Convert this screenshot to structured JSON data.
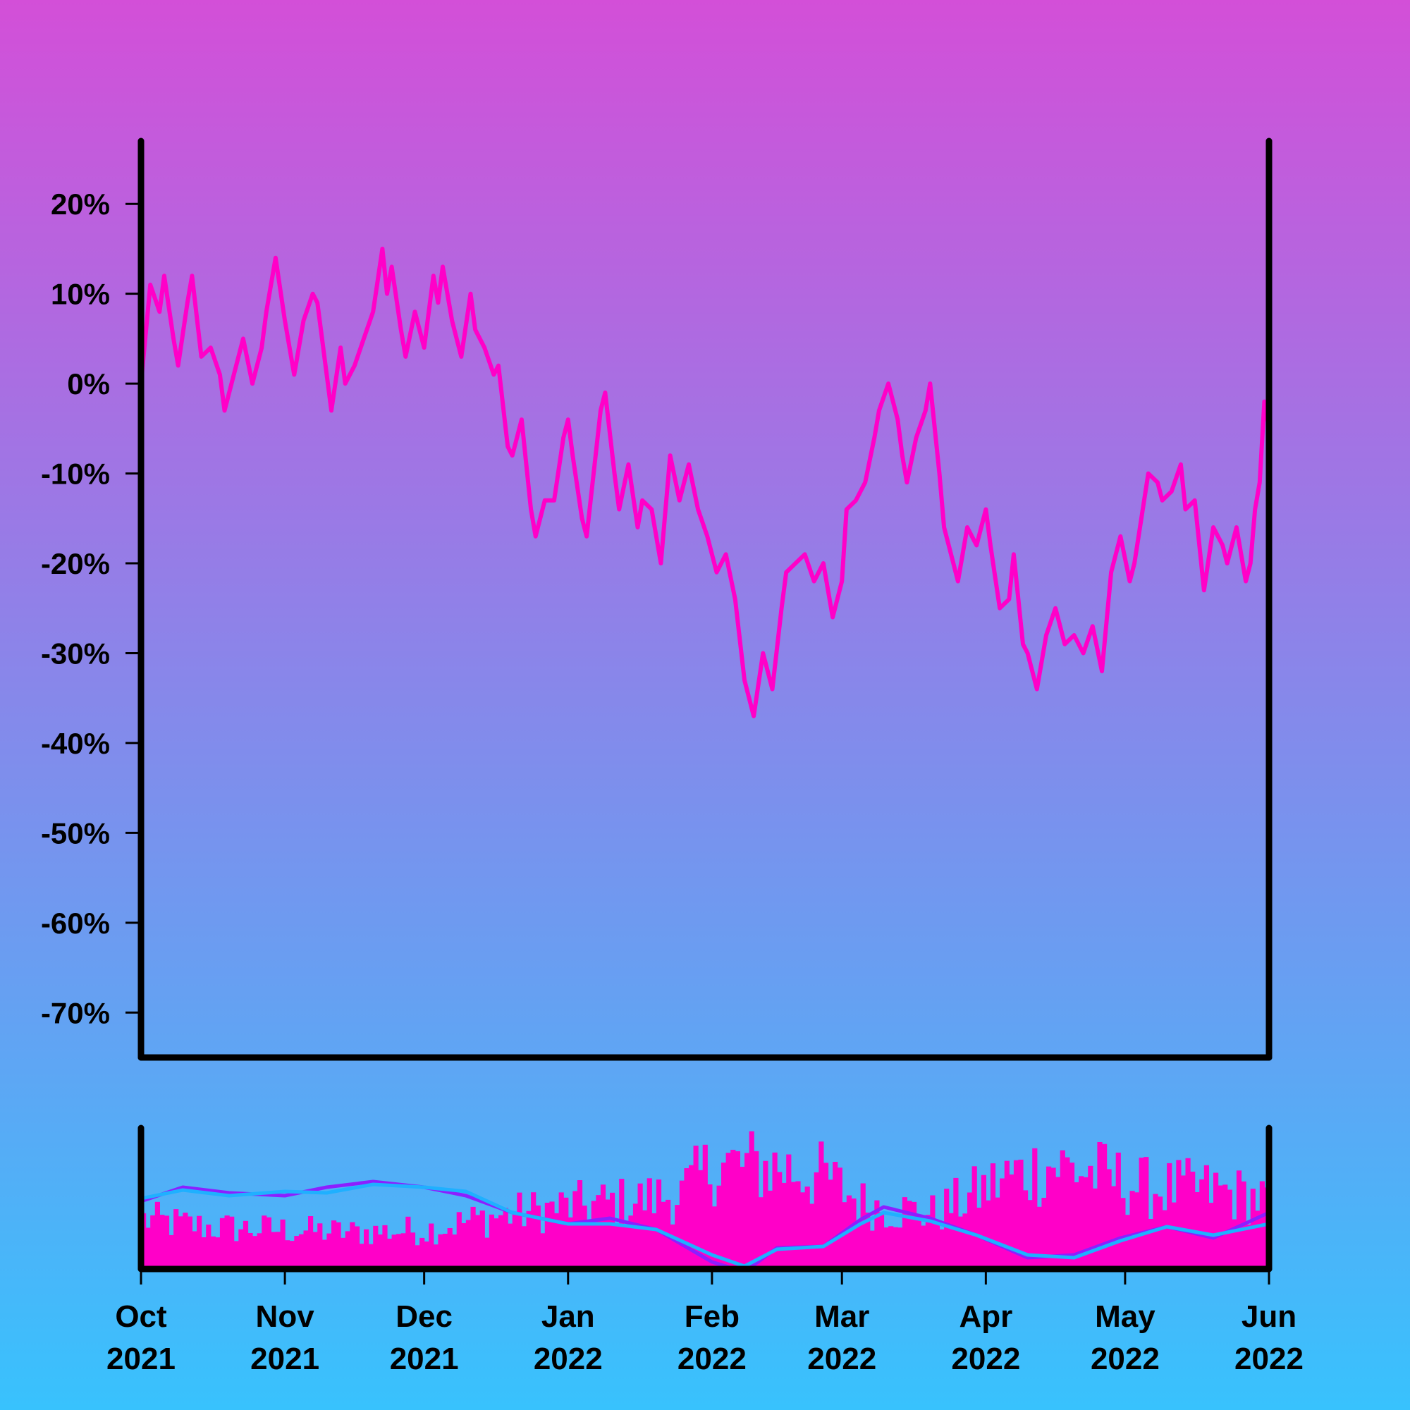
{
  "colors": {
    "bg_top": "#d34fd8",
    "bg_bottom": "#38c2fd",
    "axis": "#000000",
    "price_line": "#ff00c8",
    "volume_bars": "#ff00c8",
    "ma_short": "#8c1fff",
    "ma_long": "#1fb0ff"
  },
  "chart_data": [
    {
      "type": "line",
      "panel": "price",
      "title": "",
      "xlabel": "",
      "ylabel": "",
      "ylim": [
        -75,
        27
      ],
      "yticks": [
        20,
        10,
        0,
        -10,
        -20,
        -30,
        -40,
        -50,
        -60,
        -70
      ],
      "ytick_labels": [
        "20%",
        "10%",
        "0%",
        "-10%",
        "-20%",
        "-30%",
        "-40%",
        "-50%",
        "-60%",
        "-70%"
      ],
      "xlim": [
        "2021-10-01",
        "2022-06-01"
      ],
      "series": [
        {
          "values": [
            [
              "2021-10-01",
              0
            ],
            [
              "2021-10-03",
              11
            ],
            [
              "2021-10-05",
              8
            ],
            [
              "2021-10-06",
              12
            ],
            [
              "2021-10-08",
              5
            ],
            [
              "2021-10-09",
              2
            ],
            [
              "2021-10-11",
              9
            ],
            [
              "2021-10-12",
              12
            ],
            [
              "2021-10-14",
              3
            ],
            [
              "2021-10-16",
              4
            ],
            [
              "2021-10-18",
              1
            ],
            [
              "2021-10-19",
              -3
            ],
            [
              "2021-10-21",
              1
            ],
            [
              "2021-10-23",
              5
            ],
            [
              "2021-10-25",
              0
            ],
            [
              "2021-10-27",
              4
            ],
            [
              "2021-10-28",
              8
            ],
            [
              "2021-10-30",
              14
            ],
            [
              "2021-11-01",
              7
            ],
            [
              "2021-11-03",
              1
            ],
            [
              "2021-11-05",
              7
            ],
            [
              "2021-11-07",
              10
            ],
            [
              "2021-11-08",
              9
            ],
            [
              "2021-11-10",
              1
            ],
            [
              "2021-11-11",
              -3
            ],
            [
              "2021-11-13",
              4
            ],
            [
              "2021-11-14",
              0
            ],
            [
              "2021-11-16",
              2
            ],
            [
              "2021-11-18",
              5
            ],
            [
              "2021-11-20",
              8
            ],
            [
              "2021-11-22",
              15
            ],
            [
              "2021-11-23",
              10
            ],
            [
              "2021-11-24",
              13
            ],
            [
              "2021-11-26",
              6
            ],
            [
              "2021-11-27",
              3
            ],
            [
              "2021-11-29",
              8
            ],
            [
              "2021-12-01",
              4
            ],
            [
              "2021-12-03",
              12
            ],
            [
              "2021-12-04",
              9
            ],
            [
              "2021-12-05",
              13
            ],
            [
              "2021-12-07",
              7
            ],
            [
              "2021-12-08",
              5
            ],
            [
              "2021-12-09",
              3
            ],
            [
              "2021-12-11",
              10
            ],
            [
              "2021-12-12",
              6
            ],
            [
              "2021-12-14",
              4
            ],
            [
              "2021-12-16",
              1
            ],
            [
              "2021-12-17",
              2
            ],
            [
              "2021-12-19",
              -7
            ],
            [
              "2021-12-20",
              -8
            ],
            [
              "2021-12-22",
              -4
            ],
            [
              "2021-12-24",
              -14
            ],
            [
              "2021-12-25",
              -17
            ],
            [
              "2021-12-27",
              -13
            ],
            [
              "2021-12-29",
              -13
            ],
            [
              "2021-12-31",
              -6
            ],
            [
              "2022-01-01",
              -4
            ],
            [
              "2022-01-02",
              -8
            ],
            [
              "2022-01-04",
              -15
            ],
            [
              "2022-01-05",
              -17
            ],
            [
              "2022-01-08",
              -3
            ],
            [
              "2022-01-09",
              -1
            ],
            [
              "2022-01-11",
              -10
            ],
            [
              "2022-01-12",
              -14
            ],
            [
              "2022-01-14",
              -9
            ],
            [
              "2022-01-16",
              -16
            ],
            [
              "2022-01-17",
              -13
            ],
            [
              "2022-01-19",
              -14
            ],
            [
              "2022-01-21",
              -20
            ],
            [
              "2022-01-23",
              -8
            ],
            [
              "2022-01-25",
              -13
            ],
            [
              "2022-01-27",
              -9
            ],
            [
              "2022-01-29",
              -14
            ],
            [
              "2022-01-31",
              -17
            ],
            [
              "2022-02-02",
              -21
            ],
            [
              "2022-02-04",
              -19
            ],
            [
              "2022-02-06",
              -24
            ],
            [
              "2022-02-08",
              -33
            ],
            [
              "2022-02-10",
              -37
            ],
            [
              "2022-02-12",
              -30
            ],
            [
              "2022-02-14",
              -34
            ],
            [
              "2022-02-16",
              -25
            ],
            [
              "2022-02-17",
              -21
            ],
            [
              "2022-02-19",
              -20
            ],
            [
              "2022-02-21",
              -19
            ],
            [
              "2022-02-23",
              -22
            ],
            [
              "2022-02-25",
              -20
            ],
            [
              "2022-02-27",
              -26
            ],
            [
              "2022-03-01",
              -22
            ],
            [
              "2022-03-02",
              -14
            ],
            [
              "2022-03-04",
              -13
            ],
            [
              "2022-03-06",
              -11
            ],
            [
              "2022-03-08",
              -6
            ],
            [
              "2022-03-09",
              -3
            ],
            [
              "2022-03-11",
              0
            ],
            [
              "2022-03-13",
              -4
            ],
            [
              "2022-03-14",
              -8
            ],
            [
              "2022-03-15",
              -11
            ],
            [
              "2022-03-17",
              -6
            ],
            [
              "2022-03-19",
              -3
            ],
            [
              "2022-03-20",
              0
            ],
            [
              "2022-03-22",
              -10
            ],
            [
              "2022-03-23",
              -16
            ],
            [
              "2022-03-25",
              -20
            ],
            [
              "2022-03-26",
              -22
            ],
            [
              "2022-03-28",
              -16
            ],
            [
              "2022-03-30",
              -18
            ],
            [
              "2022-04-01",
              -14
            ],
            [
              "2022-04-02",
              -18
            ],
            [
              "2022-04-04",
              -25
            ],
            [
              "2022-04-06",
              -24
            ],
            [
              "2022-04-07",
              -19
            ],
            [
              "2022-04-09",
              -29
            ],
            [
              "2022-04-10",
              -30
            ],
            [
              "2022-04-12",
              -34
            ],
            [
              "2022-04-14",
              -28
            ],
            [
              "2022-04-16",
              -25
            ],
            [
              "2022-04-18",
              -29
            ],
            [
              "2022-04-20",
              -28
            ],
            [
              "2022-04-22",
              -30
            ],
            [
              "2022-04-24",
              -27
            ],
            [
              "2022-04-26",
              -32
            ],
            [
              "2022-04-28",
              -21
            ],
            [
              "2022-04-30",
              -17
            ],
            [
              "2022-05-02",
              -22
            ],
            [
              "2022-05-03",
              -20
            ],
            [
              "2022-05-06",
              -10
            ],
            [
              "2022-05-08",
              -11
            ],
            [
              "2022-05-09",
              -13
            ],
            [
              "2022-05-11",
              -12
            ],
            [
              "2022-05-13",
              -9
            ],
            [
              "2022-05-14",
              -14
            ],
            [
              "2022-05-16",
              -13
            ],
            [
              "2022-05-18",
              -23
            ],
            [
              "2022-05-20",
              -16
            ],
            [
              "2022-05-22",
              -18
            ],
            [
              "2022-05-23",
              -20
            ],
            [
              "2022-05-25",
              -16
            ],
            [
              "2022-05-27",
              -22
            ],
            [
              "2022-05-28",
              -20
            ],
            [
              "2022-05-29",
              -14
            ],
            [
              "2022-05-30",
              -11
            ],
            [
              "2022-05-31",
              -2
            ],
            [
              "2022-06-01",
              -5
            ]
          ]
        }
      ]
    },
    {
      "type": "bar",
      "panel": "volume",
      "title": "",
      "xlabel": "",
      "ylabel": "",
      "ylim": [
        0,
        100
      ],
      "note_series": "relative volume with two moving-average lines",
      "xticks": [
        "2021-10-01",
        "2021-11-01",
        "2021-12-01",
        "2022-01-01",
        "2022-02-01",
        "2022-03-01",
        "2022-04-01",
        "2022-05-01",
        "2022-06-01"
      ],
      "xtick_labels": [
        [
          "Oct",
          "2021"
        ],
        [
          "Nov",
          "2021"
        ],
        [
          "Dec",
          "2021"
        ],
        [
          "Jan",
          "2022"
        ],
        [
          "Feb",
          "2022"
        ],
        [
          "Mar",
          "2022"
        ],
        [
          "Apr",
          "2022"
        ],
        [
          "May",
          "2022"
        ],
        [
          "Jun",
          "2022"
        ]
      ],
      "volume_profile": [
        [
          "2021-10-01",
          38
        ],
        [
          "2021-10-15",
          32
        ],
        [
          "2021-11-01",
          30
        ],
        [
          "2021-11-15",
          28
        ],
        [
          "2021-12-01",
          30
        ],
        [
          "2021-12-15",
          40
        ],
        [
          "2022-01-01",
          48
        ],
        [
          "2022-01-15",
          52
        ],
        [
          "2022-01-25",
          58
        ],
        [
          "2022-02-01",
          80
        ],
        [
          "2022-02-15",
          78
        ],
        [
          "2022-02-25",
          70
        ],
        [
          "2022-03-05",
          50
        ],
        [
          "2022-03-20",
          42
        ],
        [
          "2022-03-28",
          55
        ],
        [
          "2022-04-05",
          70
        ],
        [
          "2022-04-15",
          80
        ],
        [
          "2022-04-25",
          72
        ],
        [
          "2022-05-05",
          62
        ],
        [
          "2022-05-20",
          60
        ],
        [
          "2022-06-01",
          52
        ]
      ],
      "ma_short": [
        [
          "2021-10-01",
          48
        ],
        [
          "2021-10-10",
          58
        ],
        [
          "2021-10-20",
          54
        ],
        [
          "2021-11-01",
          52
        ],
        [
          "2021-11-10",
          58
        ],
        [
          "2021-11-20",
          62
        ],
        [
          "2021-12-01",
          58
        ],
        [
          "2021-12-10",
          52
        ],
        [
          "2021-12-20",
          40
        ],
        [
          "2022-01-01",
          32
        ],
        [
          "2022-01-10",
          36
        ],
        [
          "2022-01-20",
          28
        ],
        [
          "2022-02-01",
          5
        ],
        [
          "2022-02-08",
          -2
        ],
        [
          "2022-02-15",
          15
        ],
        [
          "2022-02-25",
          16
        ],
        [
          "2022-03-05",
          35
        ],
        [
          "2022-03-10",
          44
        ],
        [
          "2022-03-20",
          36
        ],
        [
          "2022-03-30",
          24
        ],
        [
          "2022-04-10",
          8
        ],
        [
          "2022-04-20",
          10
        ],
        [
          "2022-04-30",
          22
        ],
        [
          "2022-05-10",
          30
        ],
        [
          "2022-05-20",
          22
        ],
        [
          "2022-06-01",
          40
        ]
      ],
      "ma_long": [
        [
          "2021-10-01",
          50
        ],
        [
          "2021-10-10",
          56
        ],
        [
          "2021-10-20",
          52
        ],
        [
          "2021-11-01",
          55
        ],
        [
          "2021-11-10",
          54
        ],
        [
          "2021-11-20",
          60
        ],
        [
          "2021-12-01",
          58
        ],
        [
          "2021-12-10",
          55
        ],
        [
          "2021-12-20",
          40
        ],
        [
          "2022-01-01",
          32
        ],
        [
          "2022-01-10",
          32
        ],
        [
          "2022-01-20",
          28
        ],
        [
          "2022-02-01",
          10
        ],
        [
          "2022-02-08",
          2
        ],
        [
          "2022-02-15",
          14
        ],
        [
          "2022-02-25",
          16
        ],
        [
          "2022-03-05",
          32
        ],
        [
          "2022-03-10",
          40
        ],
        [
          "2022-03-20",
          34
        ],
        [
          "2022-03-30",
          24
        ],
        [
          "2022-04-10",
          10
        ],
        [
          "2022-04-20",
          8
        ],
        [
          "2022-04-30",
          20
        ],
        [
          "2022-05-10",
          30
        ],
        [
          "2022-05-20",
          24
        ],
        [
          "2022-06-01",
          32
        ]
      ]
    }
  ]
}
